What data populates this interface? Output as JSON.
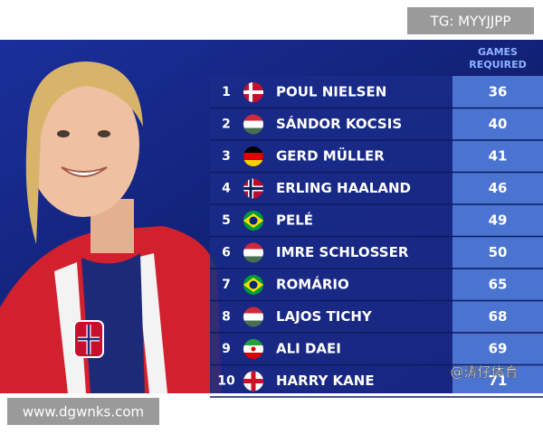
{
  "watermark_top": "TG: MYYJJPP",
  "watermark_bottom": "www.dgwnks.com",
  "watermark_corner": "@涛仔体育",
  "table": {
    "header": {
      "games_line1": "GAMES",
      "games_line2": "REQUIRED"
    },
    "rows": [
      {
        "rank": 1,
        "name": "POUL NIELSEN",
        "games": 36
      },
      {
        "rank": 2,
        "name": "SÁNDOR KOCSIS",
        "games": 40
      },
      {
        "rank": 3,
        "name": "GERD MÜLLER",
        "games": 41
      },
      {
        "rank": 4,
        "name": "ERLING HAALAND",
        "games": 46
      },
      {
        "rank": 5,
        "name": "PELÉ",
        "games": 49
      },
      {
        "rank": 6,
        "name": "IMRE SCHLOSSER",
        "games": 50
      },
      {
        "rank": 7,
        "name": "ROMÁRIO",
        "games": 65
      },
      {
        "rank": 8,
        "name": "LAJOS TICHY",
        "games": 68
      },
      {
        "rank": 9,
        "name": "ALI DAEI",
        "games": 69
      },
      {
        "rank": 10,
        "name": "HARRY KANE",
        "games": 71
      }
    ]
  }
}
